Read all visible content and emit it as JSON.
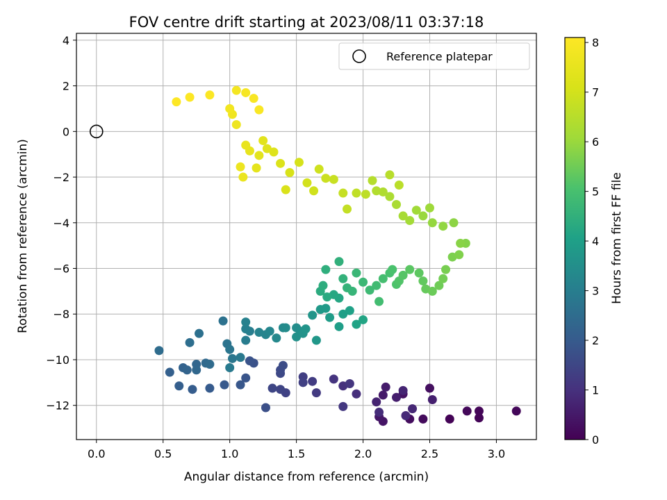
{
  "chart_data": {
    "type": "scatter",
    "title": "FOV centre drift starting at 2023/08/11 03:37:18",
    "xlabel": "Angular distance from reference (arcmin)",
    "ylabel": "Rotation from reference (arcmin)",
    "xlim": [
      -0.15,
      3.3
    ],
    "ylim": [
      -13.5,
      4.3
    ],
    "x_ticks": [
      "0.0",
      "0.5",
      "1.0",
      "1.5",
      "2.0",
      "2.5",
      "3.0"
    ],
    "x_tick_values": [
      0,
      0.5,
      1.0,
      1.5,
      2.0,
      2.5,
      3.0
    ],
    "y_ticks": [
      "−12",
      "−10",
      "−8",
      "−6",
      "−4",
      "−2",
      "0",
      "2",
      "4"
    ],
    "y_tick_values": [
      -12,
      -10,
      -8,
      -6,
      -4,
      -2,
      0,
      2,
      4
    ],
    "grid": true,
    "legend_position": "top-right",
    "legend_entries": [
      "Reference platepar"
    ],
    "reference_point": {
      "x": 0,
      "y": 0
    },
    "colorbar": {
      "label": "Hours from first FF file",
      "range": [
        0,
        8.1
      ],
      "ticks": [
        "0",
        "1",
        "2",
        "3",
        "4",
        "5",
        "6",
        "7",
        "8"
      ],
      "tick_values": [
        0,
        1,
        2,
        3,
        4,
        5,
        6,
        7,
        8
      ],
      "colormap": "viridis"
    },
    "points": [
      [
        2.65,
        -12.6,
        0.05
      ],
      [
        2.87,
        -12.55,
        0.08
      ],
      [
        2.87,
        -12.25,
        0.1
      ],
      [
        3.15,
        -12.25,
        0.12
      ],
      [
        2.78,
        -12.25,
        0.15
      ],
      [
        2.45,
        -12.6,
        0.2
      ],
      [
        2.35,
        -12.6,
        0.25
      ],
      [
        2.5,
        -11.25,
        0.3
      ],
      [
        2.3,
        -11.5,
        0.35
      ],
      [
        2.15,
        -12.7,
        0.4
      ],
      [
        2.12,
        -12.5,
        0.45
      ],
      [
        2.15,
        -11.55,
        0.5
      ],
      [
        2.17,
        -11.2,
        0.55
      ],
      [
        2.25,
        -11.65,
        0.6
      ],
      [
        2.52,
        -11.75,
        0.65
      ],
      [
        2.1,
        -11.85,
        0.7
      ],
      [
        2.3,
        -11.35,
        0.75
      ],
      [
        2.37,
        -12.15,
        0.8
      ],
      [
        2.32,
        -12.45,
        0.85
      ],
      [
        2.12,
        -12.3,
        0.9
      ],
      [
        1.95,
        -11.5,
        0.95
      ],
      [
        1.85,
        -11.15,
        1.0
      ],
      [
        1.78,
        -10.85,
        1.05
      ],
      [
        1.9,
        -11.05,
        1.1
      ],
      [
        1.85,
        -12.05,
        1.15
      ],
      [
        1.65,
        -11.45,
        1.2
      ],
      [
        1.62,
        -10.95,
        1.25
      ],
      [
        1.55,
        -10.75,
        1.3
      ],
      [
        1.55,
        -11.0,
        1.35
      ],
      [
        1.42,
        -11.45,
        1.4
      ],
      [
        1.38,
        -11.3,
        1.45
      ],
      [
        1.32,
        -11.25,
        1.5
      ],
      [
        1.38,
        -10.6,
        1.55
      ],
      [
        1.38,
        -10.45,
        1.6
      ],
      [
        1.4,
        -10.25,
        1.65
      ],
      [
        1.27,
        -12.1,
        1.7
      ],
      [
        1.18,
        -10.15,
        1.75
      ],
      [
        1.15,
        -10.05,
        1.8
      ],
      [
        1.12,
        -10.8,
        1.85
      ],
      [
        1.08,
        -11.1,
        1.9
      ],
      [
        0.96,
        -11.1,
        1.95
      ],
      [
        0.85,
        -11.25,
        2.0
      ],
      [
        0.72,
        -11.3,
        2.05
      ],
      [
        0.62,
        -11.15,
        2.1
      ],
      [
        0.55,
        -10.55,
        2.15
      ],
      [
        0.65,
        -10.35,
        2.2
      ],
      [
        0.68,
        -10.45,
        2.25
      ],
      [
        0.75,
        -10.2,
        2.3
      ],
      [
        0.75,
        -10.45,
        2.35
      ],
      [
        0.82,
        -10.15,
        2.4
      ],
      [
        0.85,
        -10.2,
        2.45
      ],
      [
        0.47,
        -9.6,
        2.5
      ],
      [
        0.7,
        -9.25,
        2.55
      ],
      [
        0.77,
        -8.85,
        2.6
      ],
      [
        0.95,
        -8.3,
        2.65
      ],
      [
        0.98,
        -9.3,
        2.7
      ],
      [
        1.0,
        -9.55,
        2.75
      ],
      [
        1.02,
        -9.95,
        2.8
      ],
      [
        1.08,
        -9.9,
        2.85
      ],
      [
        1.0,
        -10.35,
        2.9
      ],
      [
        1.12,
        -9.15,
        2.95
      ],
      [
        1.15,
        -8.75,
        3.0
      ],
      [
        1.12,
        -8.65,
        3.05
      ],
      [
        1.12,
        -8.35,
        3.1
      ],
      [
        1.22,
        -8.8,
        3.15
      ],
      [
        1.27,
        -8.9,
        3.2
      ],
      [
        1.3,
        -8.75,
        3.25
      ],
      [
        1.35,
        -9.05,
        3.3
      ],
      [
        1.4,
        -8.6,
        3.35
      ],
      [
        1.42,
        -8.6,
        3.4
      ],
      [
        1.5,
        -8.6,
        3.45
      ],
      [
        1.53,
        -8.75,
        3.5
      ],
      [
        1.5,
        -9.0,
        3.55
      ],
      [
        1.55,
        -8.85,
        3.6
      ],
      [
        1.57,
        -8.65,
        3.65
      ],
      [
        1.62,
        -8.05,
        3.7
      ],
      [
        1.65,
        -9.15,
        3.75
      ],
      [
        1.68,
        -7.8,
        3.8
      ],
      [
        1.72,
        -7.75,
        3.85
      ],
      [
        1.75,
        -8.15,
        3.9
      ],
      [
        1.82,
        -8.55,
        3.95
      ],
      [
        1.85,
        -8.0,
        4.0
      ],
      [
        1.9,
        -7.85,
        4.05
      ],
      [
        1.95,
        -8.45,
        4.1
      ],
      [
        2.0,
        -8.25,
        4.15
      ],
      [
        1.82,
        -7.3,
        4.2
      ],
      [
        1.78,
        -7.15,
        4.25
      ],
      [
        1.73,
        -7.25,
        4.3
      ],
      [
        1.68,
        -7.0,
        4.35
      ],
      [
        1.7,
        -6.75,
        4.4
      ],
      [
        1.72,
        -6.05,
        4.45
      ],
      [
        1.82,
        -5.7,
        4.5
      ],
      [
        1.85,
        -6.45,
        4.55
      ],
      [
        1.88,
        -6.85,
        4.6
      ],
      [
        1.92,
        -7.0,
        4.65
      ],
      [
        1.95,
        -6.2,
        4.7
      ],
      [
        2.0,
        -6.6,
        4.75
      ],
      [
        2.05,
        -6.95,
        4.8
      ],
      [
        2.1,
        -6.75,
        4.85
      ],
      [
        2.12,
        -7.45,
        4.9
      ],
      [
        2.15,
        -6.45,
        4.95
      ],
      [
        2.2,
        -6.2,
        5.0
      ],
      [
        2.22,
        -6.05,
        5.05
      ],
      [
        2.25,
        -6.7,
        5.1
      ],
      [
        2.27,
        -6.55,
        5.15
      ],
      [
        2.3,
        -6.3,
        5.2
      ],
      [
        2.35,
        -6.05,
        5.25
      ],
      [
        2.42,
        -6.2,
        5.3
      ],
      [
        2.45,
        -6.55,
        5.35
      ],
      [
        2.47,
        -6.9,
        5.4
      ],
      [
        2.52,
        -7.0,
        5.45
      ],
      [
        2.57,
        -6.75,
        5.5
      ],
      [
        2.6,
        -6.45,
        5.55
      ],
      [
        2.62,
        -6.05,
        5.6
      ],
      [
        2.67,
        -5.5,
        5.65
      ],
      [
        2.72,
        -5.4,
        5.7
      ],
      [
        2.77,
        -4.9,
        5.75
      ],
      [
        2.73,
        -4.9,
        5.8
      ],
      [
        2.68,
        -4.0,
        5.85
      ],
      [
        2.6,
        -4.15,
        5.9
      ],
      [
        2.52,
        -4.0,
        5.95
      ],
      [
        2.45,
        -3.7,
        6.0
      ],
      [
        2.5,
        -3.35,
        6.05
      ],
      [
        2.4,
        -3.45,
        6.1
      ],
      [
        2.35,
        -3.9,
        6.15
      ],
      [
        2.3,
        -3.7,
        6.2
      ],
      [
        2.25,
        -3.2,
        6.25
      ],
      [
        2.2,
        -2.85,
        6.3
      ],
      [
        2.15,
        -2.65,
        6.35
      ],
      [
        2.1,
        -2.6,
        6.4
      ],
      [
        2.07,
        -2.15,
        6.45
      ],
      [
        2.2,
        -1.9,
        6.5
      ],
      [
        2.27,
        -2.35,
        6.55
      ],
      [
        2.02,
        -2.75,
        6.6
      ],
      [
        1.95,
        -2.7,
        6.65
      ],
      [
        1.88,
        -3.4,
        6.7
      ],
      [
        1.85,
        -2.7,
        6.75
      ],
      [
        1.78,
        -2.1,
        6.8
      ],
      [
        1.72,
        -2.05,
        6.85
      ],
      [
        1.67,
        -1.65,
        6.9
      ],
      [
        1.63,
        -2.6,
        6.95
      ],
      [
        1.58,
        -2.25,
        7.0
      ],
      [
        1.52,
        -1.35,
        7.05
      ],
      [
        1.45,
        -1.8,
        7.1
      ],
      [
        1.42,
        -2.55,
        7.15
      ],
      [
        1.38,
        -1.4,
        7.2
      ],
      [
        1.33,
        -0.9,
        7.25
      ],
      [
        1.28,
        -0.75,
        7.3
      ],
      [
        1.25,
        -0.4,
        7.35
      ],
      [
        1.22,
        -1.05,
        7.4
      ],
      [
        1.2,
        -1.6,
        7.45
      ],
      [
        1.15,
        -0.85,
        7.5
      ],
      [
        1.12,
        -0.6,
        7.55
      ],
      [
        1.1,
        -2.0,
        7.6
      ],
      [
        1.08,
        -1.55,
        7.65
      ],
      [
        1.05,
        0.3,
        7.7
      ],
      [
        1.02,
        0.75,
        7.75
      ],
      [
        1.0,
        1.0,
        7.8
      ],
      [
        1.05,
        1.8,
        7.85
      ],
      [
        1.12,
        1.7,
        7.9
      ],
      [
        1.18,
        1.45,
        7.95
      ],
      [
        1.22,
        0.95,
        8.0
      ],
      [
        0.85,
        1.6,
        8.05
      ],
      [
        0.7,
        1.5,
        8.08
      ],
      [
        0.6,
        1.3,
        8.1
      ]
    ]
  }
}
